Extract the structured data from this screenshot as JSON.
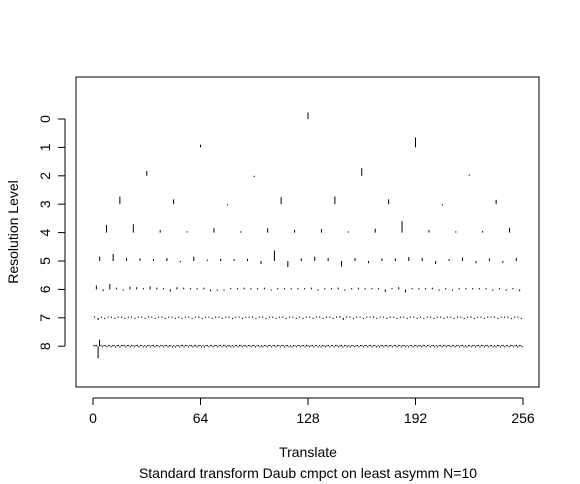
{
  "chart_data": {
    "type": "wavelet-coefficient-plot",
    "title": "",
    "xlabel": "Translate",
    "ylabel": "Resolution Level",
    "subtitle": "Standard transform Daub cmpct on least asymm N=10",
    "xlim": [
      0,
      256
    ],
    "x_ticks": [
      0,
      64,
      128,
      192,
      256
    ],
    "x_tick_labels": [
      "0",
      "64",
      "128",
      "192",
      "256"
    ],
    "y_ticks": [
      0,
      1,
      2,
      3,
      4,
      5,
      6,
      7,
      8
    ],
    "y_tick_labels": [
      "0",
      "1",
      "2",
      "3",
      "4",
      "5",
      "6",
      "7",
      "8"
    ],
    "levels": [
      {
        "level": 0,
        "values": [
          0.3
        ]
      },
      {
        "level": 1,
        "values": [
          0.12,
          0.45
        ]
      },
      {
        "level": 2,
        "values": [
          0.22,
          -0.05,
          0.35,
          0.05
        ]
      },
      {
        "level": 3,
        "values": [
          0.35,
          0.22,
          -0.02,
          0.32,
          0.35,
          0.22,
          -0.02,
          0.2
        ]
      },
      {
        "level": 4,
        "values": [
          0.35,
          0.38,
          0.12,
          0.06,
          0.2,
          0.06,
          0.2,
          0.12,
          0.16,
          0.04,
          0.18,
          0.52,
          0.12,
          0.06,
          0.08,
          0.22
        ]
      },
      {
        "level": 5,
        "values": [
          0.2,
          0.32,
          0.14,
          0.12,
          0.08,
          0.14,
          -0.06,
          0.2,
          0.06,
          0.1,
          0.08,
          0.1,
          -0.14,
          0.48,
          -0.28,
          0.12,
          0.2,
          0.14,
          -0.26,
          0.14,
          -0.1,
          0.12,
          0.12,
          0.18,
          0.14,
          -0.14,
          0.08,
          0.16,
          -0.1,
          0.12,
          -0.08,
          0.14
        ]
      },
      {
        "level": 6,
        "values": [
          0.18,
          -0.08,
          0.24,
          0.08,
          -0.04,
          0.12,
          0.1,
          0.06,
          0.14,
          0.08,
          0.06,
          -0.1,
          0.1,
          0.08,
          0.06,
          0.06,
          0.08,
          -0.08,
          -0.06,
          -0.06,
          0.06,
          0.06,
          0.08,
          0.06,
          0.06,
          0.08,
          -0.04,
          0.06,
          0.06,
          0.06,
          0.06,
          0.06,
          0.08,
          -0.06,
          0.06,
          0.06,
          0.08,
          -0.06,
          0.06,
          0.08,
          0.06,
          0.06,
          0.06,
          -0.12,
          0.06,
          0.1,
          -0.14,
          0.06,
          0.06,
          0.06,
          0.08,
          -0.06,
          0.06,
          -0.06,
          0.06,
          0.06,
          0.06,
          0.06,
          0.06,
          -0.06,
          0.06,
          -0.06,
          0.06,
          -0.08
        ]
      },
      {
        "level": 7,
        "values": [
          0.06,
          -0.1,
          0.04,
          -0.06,
          0.05,
          0.04,
          -0.05,
          0.06,
          0.04,
          -0.04,
          0.05,
          0.06,
          -0.04,
          0.04,
          0.05,
          -0.04,
          0.06,
          0.04,
          -0.05,
          0.04,
          0.06,
          -0.06,
          0.04,
          0.05,
          -0.04,
          0.04,
          -0.06,
          0.05,
          0.04,
          -0.04,
          0.05,
          0.06,
          -0.04,
          0.04,
          0.05,
          -0.04,
          0.06,
          0.04,
          -0.05,
          0.04,
          0.06,
          -0.06,
          0.04,
          0.05,
          -0.04,
          0.04,
          0.05,
          0.06,
          -0.04,
          0.04,
          0.05,
          -0.04,
          0.06,
          0.04,
          -0.05,
          0.04,
          0.06,
          -0.06,
          0.04,
          0.05,
          -0.04,
          0.04,
          -0.06,
          0.05,
          0.04,
          -0.04,
          0.05,
          0.06,
          -0.04,
          0.04,
          0.05,
          -0.04,
          0.06,
          0.08,
          -0.1,
          0.06,
          0.06,
          -0.06,
          0.04,
          0.05,
          -0.04,
          0.04,
          0.05,
          0.06,
          -0.04,
          0.04,
          0.05,
          -0.04,
          0.06,
          0.04,
          -0.05,
          0.04,
          0.06,
          -0.06,
          0.04,
          0.05,
          -0.04,
          0.04,
          -0.06,
          0.05,
          0.04,
          -0.04,
          0.05,
          0.06,
          -0.04,
          0.04,
          0.05,
          -0.04,
          0.06,
          0.04,
          -0.05,
          0.04,
          0.06,
          -0.06,
          0.04,
          0.05,
          -0.04,
          0.04,
          0.05,
          0.06,
          -0.04,
          0.04,
          0.05,
          0.06,
          -0.06,
          0.04,
          0.05,
          -0.04
        ]
      },
      {
        "level": 8,
        "values": [
          0.04,
          0.05,
          0.06,
          -0.55,
          0.3,
          0.06,
          -0.04,
          0.05,
          0.04,
          -0.05,
          0.06,
          0.04,
          -0.04,
          0.05,
          0.04,
          -0.06,
          0.04,
          0.05,
          -0.04,
          0.04,
          0.05,
          0.06,
          -0.04,
          0.04,
          0.05,
          -0.04,
          0.06,
          0.04,
          -0.05,
          0.04,
          0.06,
          -0.06,
          0.04,
          0.05,
          -0.04,
          0.04,
          -0.06,
          0.05,
          0.04,
          -0.04,
          0.05,
          0.06,
          -0.04,
          0.04,
          0.05,
          -0.04,
          0.06,
          0.04,
          -0.05,
          0.04,
          0.06,
          -0.06,
          0.04,
          0.05,
          -0.04,
          0.04,
          -0.06,
          0.05,
          0.04,
          -0.04,
          0.05,
          0.06,
          -0.04,
          0.04,
          0.05,
          -0.04,
          0.06,
          0.04,
          -0.05,
          0.04,
          0.06,
          -0.06,
          0.04,
          0.05,
          -0.04,
          0.04,
          -0.06,
          0.05,
          0.04,
          -0.04,
          0.05,
          0.06,
          -0.04,
          0.04,
          0.05,
          -0.04,
          0.06,
          0.04,
          -0.05,
          0.04,
          0.06,
          -0.06,
          0.04,
          0.05,
          -0.04,
          0.04,
          -0.06,
          0.05,
          0.04,
          -0.04,
          0.05,
          0.06,
          -0.04,
          0.04,
          0.05,
          -0.04,
          0.06,
          0.04,
          -0.05,
          0.04,
          0.06,
          -0.06,
          0.04,
          0.05,
          -0.04,
          0.04,
          -0.06,
          0.05,
          0.04,
          -0.04,
          0.05,
          0.06,
          -0.04,
          0.04,
          0.05,
          -0.04,
          0.06,
          0.04,
          -0.05,
          0.04,
          0.06,
          -0.06,
          0.04,
          0.05,
          -0.04,
          0.04,
          -0.06,
          0.05,
          0.04,
          -0.04,
          0.05,
          0.06,
          -0.04,
          0.04,
          0.05,
          -0.04,
          0.06,
          0.04,
          -0.05,
          0.04,
          0.06,
          -0.06,
          0.04,
          0.05,
          -0.04,
          0.04,
          -0.06,
          0.05,
          0.04,
          -0.04,
          0.05,
          0.06,
          -0.04,
          0.04,
          0.05,
          -0.04,
          0.06,
          0.04,
          -0.05,
          0.04,
          0.06,
          -0.06,
          0.04,
          0.05,
          -0.04,
          0.04,
          -0.06,
          0.05,
          0.04,
          -0.04,
          0.05,
          0.06,
          -0.04,
          0.04,
          0.05,
          -0.04,
          0.06,
          0.04,
          -0.05,
          0.04,
          0.06,
          -0.06,
          0.04,
          0.05,
          -0.04,
          0.04,
          -0.06,
          0.05,
          0.04,
          -0.04,
          0.05,
          0.06,
          -0.04,
          0.04,
          0.05,
          -0.04,
          0.06,
          0.04,
          -0.05,
          0.04,
          0.06,
          -0.06,
          0.04,
          0.05,
          -0.04,
          0.04,
          -0.06,
          0.05,
          0.04,
          -0.04,
          0.05,
          0.06,
          -0.04,
          0.04,
          0.05,
          -0.04,
          0.06,
          0.04,
          -0.05,
          0.04,
          0.06,
          -0.06,
          0.04,
          0.05,
          -0.04,
          0.04,
          -0.06,
          0.05,
          0.04,
          -0.04,
          0.05,
          0.06,
          -0.04,
          0.04,
          0.05,
          -0.04,
          0.06,
          0.04,
          -0.05,
          0.04,
          0.06,
          -0.06,
          0.04,
          0.05,
          -0.04,
          0.04,
          -0.06,
          0.05,
          0.04,
          -0.04,
          0.05,
          0.06,
          -0.04,
          0.04,
          0.05,
          -0.04,
          0.06,
          0.04,
          -0.05,
          0.04,
          0.06,
          -0.06,
          0.04,
          0.05,
          -0.04,
          0.04,
          -0.06,
          0.05,
          0.04,
          -0.04,
          0.05,
          0.06,
          -0.04,
          0.04,
          0.05,
          -0.04,
          0.06,
          0.04,
          -0.05,
          0.04,
          0.06,
          -0.06,
          0.04,
          0.05,
          -0.04
        ]
      }
    ]
  }
}
